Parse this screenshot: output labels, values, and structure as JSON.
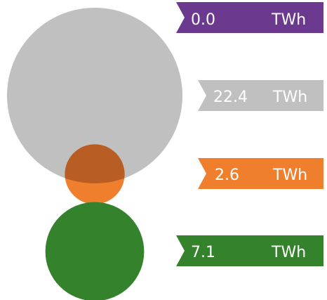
{
  "chart_data": {
    "type": "bubble",
    "unit": "TWh",
    "series": [
      {
        "value": "0.0",
        "number": 0.0,
        "color": "#6b3a8f"
      },
      {
        "value": "22.4",
        "number": 22.4,
        "color": "#c0c0c0"
      },
      {
        "value": "2.6",
        "number": 2.6,
        "color": "#f07f2d"
      },
      {
        "value": "7.1",
        "number": 7.1,
        "color": "#34822c"
      }
    ],
    "overlap_color": "#b85d24"
  }
}
